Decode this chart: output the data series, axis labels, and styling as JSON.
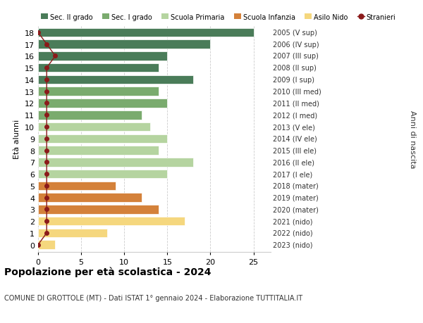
{
  "ages": [
    18,
    17,
    16,
    15,
    14,
    13,
    12,
    11,
    10,
    9,
    8,
    7,
    6,
    5,
    4,
    3,
    2,
    1,
    0
  ],
  "right_labels": [
    "2005 (V sup)",
    "2006 (IV sup)",
    "2007 (III sup)",
    "2008 (II sup)",
    "2009 (I sup)",
    "2010 (III med)",
    "2011 (II med)",
    "2012 (I med)",
    "2013 (V ele)",
    "2014 (IV ele)",
    "2015 (III ele)",
    "2016 (II ele)",
    "2017 (I ele)",
    "2018 (mater)",
    "2019 (mater)",
    "2020 (mater)",
    "2021 (nido)",
    "2022 (nido)",
    "2023 (nido)"
  ],
  "bar_values": [
    25,
    20,
    15,
    14,
    18,
    14,
    15,
    12,
    13,
    15,
    14,
    18,
    15,
    9,
    12,
    14,
    17,
    8,
    2
  ],
  "bar_colors": [
    "#4a7c59",
    "#4a7c59",
    "#4a7c59",
    "#4a7c59",
    "#4a7c59",
    "#7aab6e",
    "#7aab6e",
    "#7aab6e",
    "#b5d4a0",
    "#b5d4a0",
    "#b5d4a0",
    "#b5d4a0",
    "#b5d4a0",
    "#d4813a",
    "#d4813a",
    "#d4813a",
    "#f5d77e",
    "#f5d77e",
    "#f5d77e"
  ],
  "stranieri_values": [
    0,
    1,
    2,
    1,
    1,
    1,
    1,
    1,
    1,
    1,
    1,
    1,
    1,
    1,
    1,
    1,
    1,
    1,
    0
  ],
  "title_bold": "Popolazione per età scolastica - 2024",
  "subtitle": "COMUNE DI GROTTOLE (MT) - Dati ISTAT 1° gennaio 2024 - Elaborazione TUTTITALIA.IT",
  "ylabel": "Età alunni",
  "right_ylabel": "Anni di nascita",
  "xlim": [
    0,
    27
  ],
  "xticks": [
    0,
    5,
    10,
    15,
    20,
    25
  ],
  "legend_items": [
    {
      "label": "Sec. II grado",
      "color": "#4a7c59"
    },
    {
      "label": "Sec. I grado",
      "color": "#7aab6e"
    },
    {
      "label": "Scuola Primaria",
      "color": "#b5d4a0"
    },
    {
      "label": "Scuola Infanzia",
      "color": "#d4813a"
    },
    {
      "label": "Asilo Nido",
      "color": "#f5d77e"
    },
    {
      "label": "Stranieri",
      "color": "#8b1a1a"
    }
  ],
  "background_color": "#ffffff",
  "grid_color": "#cccccc",
  "bar_height": 0.75,
  "stranieri_line_color": "#8b1a1a",
  "stranieri_marker_color": "#8b1a1a"
}
